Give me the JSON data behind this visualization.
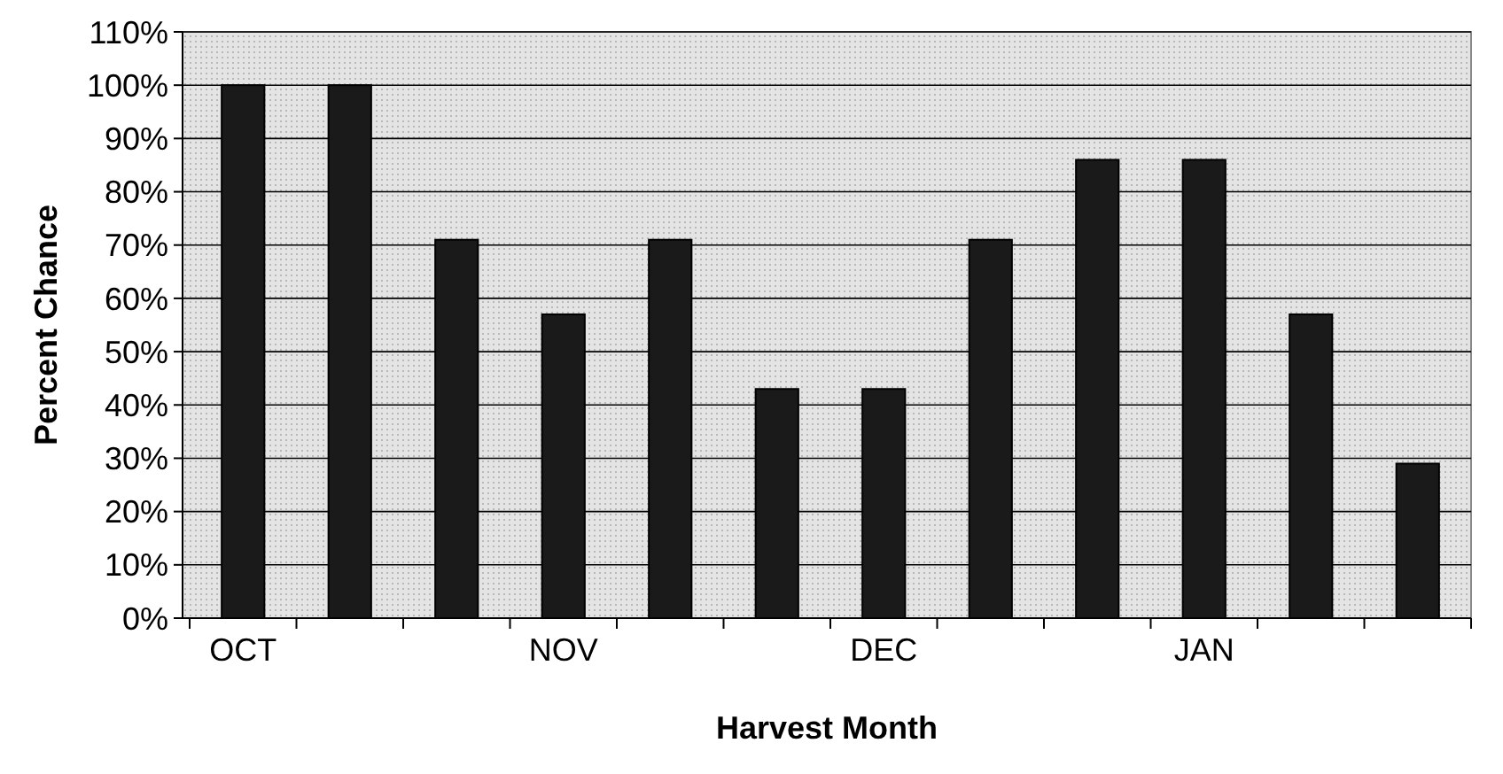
{
  "chart_data": {
    "type": "bar",
    "xlabel": "Harvest Month",
    "ylabel": "Percent Chance",
    "categories": [
      "OCT",
      null,
      null,
      "NOV",
      null,
      null,
      "DEC",
      null,
      null,
      "JAN",
      null,
      null
    ],
    "values": [
      100,
      100,
      71,
      57,
      71,
      43,
      43,
      71,
      86,
      86,
      57,
      29
    ],
    "color": "#1a1a1a",
    "ylim": [
      0,
      110
    ],
    "yticks": [
      {
        "value": 0,
        "label": "0%"
      },
      {
        "value": 10,
        "label": "10%"
      },
      {
        "value": 20,
        "label": "20%"
      },
      {
        "value": 30,
        "label": "30%"
      },
      {
        "value": 40,
        "label": "40%"
      },
      {
        "value": 50,
        "label": "50%"
      },
      {
        "value": 60,
        "label": "60%"
      },
      {
        "value": 70,
        "label": "70%"
      },
      {
        "value": 80,
        "label": "80%"
      },
      {
        "value": 90,
        "label": "90%"
      },
      {
        "value": 100,
        "label": "100%"
      },
      {
        "value": 110,
        "label": "110%"
      }
    ],
    "grid": "y"
  }
}
